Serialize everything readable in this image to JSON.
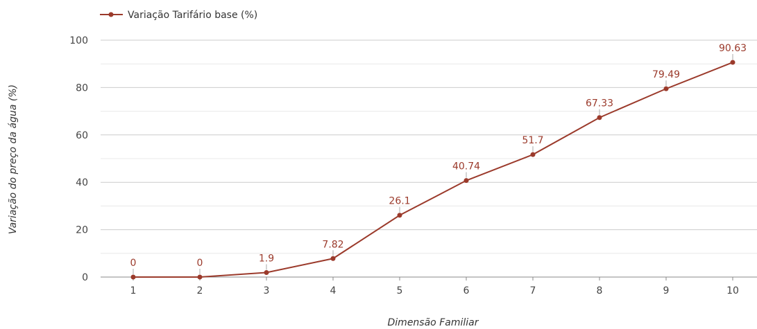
{
  "chart_data": {
    "type": "line",
    "xlabel": "Dimensão Familiar",
    "ylabel": "Variação do preço da água (%)",
    "ylim": [
      0,
      100
    ],
    "yticks": [
      0,
      20,
      40,
      60,
      80,
      100
    ],
    "categories": [
      "1",
      "2",
      "3",
      "4",
      "5",
      "6",
      "7",
      "8",
      "9",
      "10"
    ],
    "series": [
      {
        "name": "Variação Tarifário base (%)",
        "values": [
          0,
          0,
          1.9,
          7.82,
          26.1,
          40.74,
          51.7,
          67.33,
          79.49,
          90.63
        ],
        "labels": [
          "0",
          "0",
          "1.9",
          "7.82",
          "26.1",
          "40.74",
          "51.7",
          "67.33",
          "79.49",
          "90.63"
        ],
        "color": "#9b3a2b"
      }
    ],
    "legend": "top-left",
    "grid": true
  }
}
